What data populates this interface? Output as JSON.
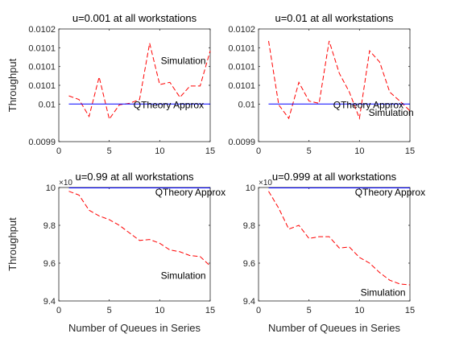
{
  "chart_data": [
    {
      "type": "line",
      "title": "u=0.001 at all workstations",
      "xlabel": "",
      "ylabel": "Throughput",
      "exponent_label": "",
      "xlim": [
        0,
        15
      ],
      "ylim": [
        0.0099,
        0.0102
      ],
      "x_ticks": [
        0,
        5,
        10,
        15
      ],
      "x_tick_labels": [
        "0",
        "5",
        "10",
        "15"
      ],
      "y_ticks": [
        0.0099,
        0.01,
        0.01005,
        0.0101,
        0.01015,
        0.0102
      ],
      "y_tick_labels": [
        "0.0099",
        "0.01",
        "0.0101",
        "0.0101",
        "0.0101",
        "0.0102"
      ],
      "series": [
        {
          "name": "Simulation",
          "color": "#ff0000",
          "style": "dashed",
          "x": [
            1,
            2,
            3,
            4,
            5,
            6,
            7,
            8,
            9,
            10,
            11,
            12,
            13,
            14,
            15
          ],
          "y": [
            0.010022,
            0.010012,
            0.009967,
            0.010072,
            0.00996,
            0.009998,
            0.010002,
            0.010012,
            0.010162,
            0.010052,
            0.010058,
            0.010018,
            0.010048,
            0.010048,
            0.010142
          ]
        },
        {
          "name": "QTheory Approx",
          "color": "#0000ff",
          "style": "solid",
          "x": [
            1,
            15
          ],
          "y": [
            0.01,
            0.01
          ]
        }
      ],
      "annotations": [
        {
          "text": "Simulation",
          "x": 10.1,
          "y": 0.010115
        },
        {
          "text": "QTheory Approx",
          "x": 7.4,
          "y": 0.009998
        }
      ]
    },
    {
      "type": "line",
      "title": "u=0.01 at all workstations",
      "xlabel": "",
      "ylabel": "",
      "exponent_label": "",
      "xlim": [
        0,
        15
      ],
      "ylim": [
        0.0099,
        0.0102
      ],
      "x_ticks": [
        0,
        5,
        10,
        15
      ],
      "x_tick_labels": [
        "0",
        "5",
        "10",
        "15"
      ],
      "y_ticks": [
        0.0099,
        0.01,
        0.01005,
        0.0101,
        0.01015,
        0.0102
      ],
      "y_tick_labels": [
        "0.0099",
        "0.01",
        "0.0101",
        "0.0101",
        "0.0101",
        "0.0102"
      ],
      "series": [
        {
          "name": "Simulation",
          "color": "#ff0000",
          "style": "dashed",
          "x": [
            1,
            2,
            3,
            4,
            5,
            6,
            7,
            8,
            9,
            10,
            11,
            12,
            13,
            14,
            15
          ],
          "y": [
            0.010168,
            0.009998,
            0.009962,
            0.010058,
            0.010008,
            0.010002,
            0.010168,
            0.010082,
            0.010032,
            0.009962,
            0.010142,
            0.010112,
            0.010032,
            0.010008,
            0.009982
          ]
        },
        {
          "name": "QTheory Approx",
          "color": "#0000ff",
          "style": "solid",
          "x": [
            1,
            15
          ],
          "y": [
            0.01,
            0.01
          ]
        }
      ],
      "annotations": [
        {
          "text": "QTheory Approx",
          "x": 7.4,
          "y": 0.009998
        },
        {
          "text": "Simulation",
          "x": 10.9,
          "y": 0.009977
        }
      ]
    },
    {
      "type": "line",
      "title": "u=0.99 at all workstations",
      "xlabel": "Number of Queues in Series",
      "ylabel": "Throughput",
      "exponent_label": "10",
      "xlim": [
        0,
        15
      ],
      "ylim": [
        9.4,
        10
      ],
      "x_ticks": [
        0,
        5,
        10,
        15
      ],
      "x_tick_labels": [
        "0",
        "5",
        "10",
        "15"
      ],
      "y_ticks": [
        9.4,
        9.6,
        9.8,
        10
      ],
      "y_tick_labels": [
        "9.4",
        "9.6",
        "9.8",
        "10"
      ],
      "series": [
        {
          "name": "Simulation",
          "color": "#ff0000",
          "style": "dashed",
          "x": [
            1,
            2,
            3,
            4,
            5,
            6,
            7,
            8,
            9,
            10,
            11,
            12,
            13,
            14,
            15
          ],
          "y": [
            9.98,
            9.96,
            9.88,
            9.85,
            9.83,
            9.8,
            9.76,
            9.72,
            9.725,
            9.705,
            9.67,
            9.66,
            9.64,
            9.635,
            9.585
          ]
        },
        {
          "name": "QTheory Approx",
          "color": "#0000ff",
          "style": "solid",
          "x": [
            1,
            15
          ],
          "y": [
            9.998,
            9.998
          ]
        }
      ],
      "annotations": [
        {
          "text": "QTheory Approx",
          "x": 9.55,
          "y": 9.975
        },
        {
          "text": "Simulation",
          "x": 10.1,
          "y": 9.535
        }
      ]
    },
    {
      "type": "line",
      "title": "u=0.999 at all workstations",
      "xlabel": "Number of Queues in Series",
      "ylabel": "",
      "exponent_label": "10",
      "xlim": [
        0,
        15
      ],
      "ylim": [
        9.4,
        10
      ],
      "x_ticks": [
        0,
        5,
        10,
        15
      ],
      "x_tick_labels": [
        "0",
        "5",
        "10",
        "15"
      ],
      "y_ticks": [
        9.4,
        9.6,
        9.8,
        10
      ],
      "y_tick_labels": [
        "9.4",
        "9.6",
        "9.8",
        "10"
      ],
      "series": [
        {
          "name": "Simulation",
          "color": "#ff0000",
          "style": "dashed",
          "x": [
            1,
            2,
            3,
            4,
            5,
            6,
            7,
            8,
            9,
            10,
            11,
            12,
            13,
            14,
            15
          ],
          "y": [
            9.98,
            9.89,
            9.78,
            9.8,
            9.73,
            9.74,
            9.74,
            9.68,
            9.685,
            9.63,
            9.6,
            9.55,
            9.51,
            9.49,
            9.485
          ]
        },
        {
          "name": "QTheory Approx",
          "color": "#0000ff",
          "style": "solid",
          "x": [
            1,
            15
          ],
          "y": [
            9.998,
            9.998
          ]
        }
      ],
      "annotations": [
        {
          "text": "QTheory Approx",
          "x": 9.55,
          "y": 9.975
        },
        {
          "text": "Simulation",
          "x": 10.1,
          "y": 9.445
        }
      ]
    }
  ]
}
